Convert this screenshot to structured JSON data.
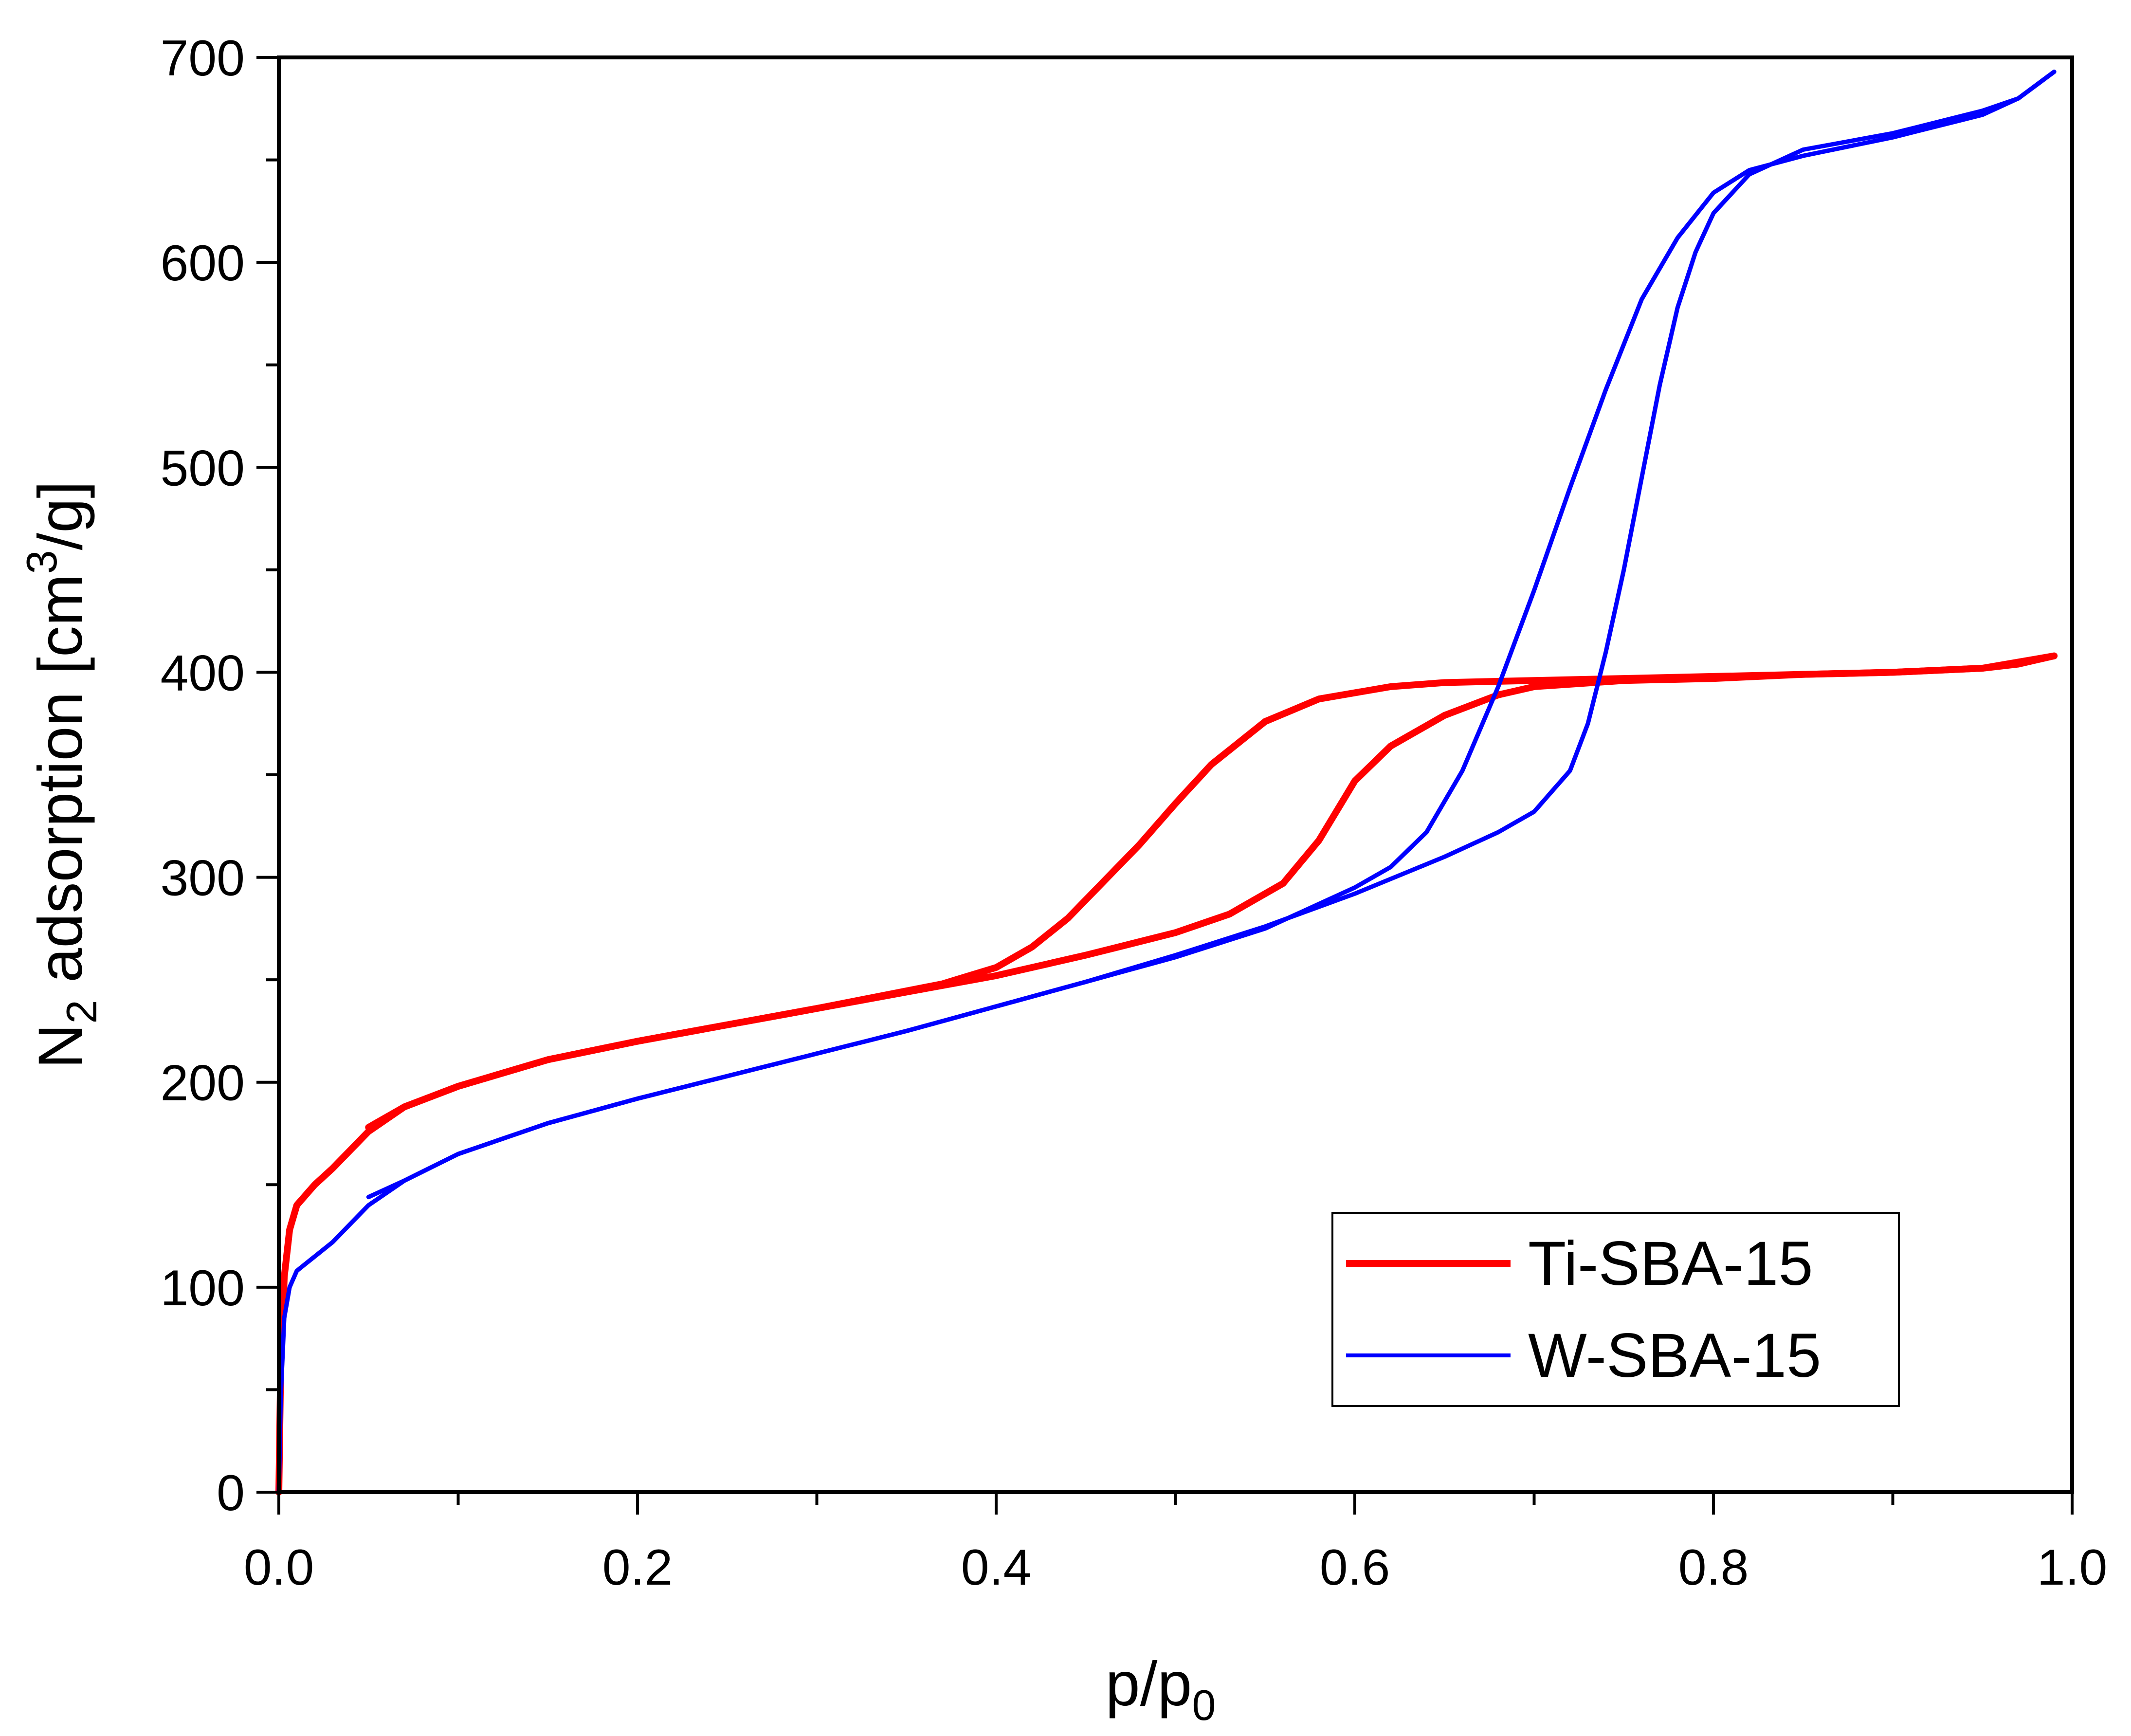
{
  "chart_data": {
    "type": "line",
    "title": "",
    "xlabel": {
      "main": "p/p",
      "sub": "0"
    },
    "ylabel": {
      "pre": "N",
      "sub": "2",
      "mid": " adsorption [cm",
      "sup": "3",
      "post": "/g]"
    },
    "xlim": [
      0,
      1
    ],
    "ylim": [
      0,
      700
    ],
    "xticks": [
      0,
      0.2,
      0.4,
      0.6,
      0.8,
      1.0
    ],
    "xtick_labels": [
      "0.0",
      "0.2",
      "0.4",
      "0.6",
      "0.8",
      "1.0"
    ],
    "xminor": [
      0.1,
      0.3,
      0.5,
      0.7,
      0.9
    ],
    "yticks": [
      0,
      100,
      200,
      300,
      400,
      500,
      600,
      700
    ],
    "ytick_labels": [
      "0",
      "100",
      "200",
      "300",
      "400",
      "500",
      "600",
      "700"
    ],
    "yminor": [
      50,
      150,
      250,
      350,
      450,
      550,
      650
    ],
    "grid": false,
    "legend_position": "bottom-right",
    "series": [
      {
        "name": "Ti-SBA-15",
        "color": "#ff0000",
        "adsorption": [
          [
            0.0,
            0
          ],
          [
            0.001,
            60
          ],
          [
            0.003,
            105
          ],
          [
            0.006,
            128
          ],
          [
            0.01,
            140
          ],
          [
            0.02,
            150
          ],
          [
            0.03,
            158
          ],
          [
            0.05,
            176
          ],
          [
            0.07,
            188
          ],
          [
            0.1,
            198
          ],
          [
            0.15,
            211
          ],
          [
            0.2,
            220
          ],
          [
            0.25,
            228
          ],
          [
            0.3,
            236
          ],
          [
            0.35,
            244
          ],
          [
            0.4,
            252
          ],
          [
            0.45,
            262
          ],
          [
            0.5,
            273
          ],
          [
            0.53,
            282
          ],
          [
            0.56,
            297
          ],
          [
            0.58,
            318
          ],
          [
            0.6,
            347
          ],
          [
            0.62,
            364
          ],
          [
            0.65,
            379
          ],
          [
            0.68,
            389
          ],
          [
            0.7,
            393
          ],
          [
            0.75,
            396
          ],
          [
            0.8,
            397
          ],
          [
            0.85,
            399
          ],
          [
            0.9,
            400
          ],
          [
            0.95,
            402
          ],
          [
            0.97,
            404
          ],
          [
            0.99,
            408
          ]
        ],
        "desorption": [
          [
            0.99,
            408
          ],
          [
            0.95,
            402
          ],
          [
            0.9,
            400
          ],
          [
            0.85,
            399
          ],
          [
            0.8,
            398
          ],
          [
            0.75,
            397
          ],
          [
            0.7,
            396
          ],
          [
            0.65,
            395
          ],
          [
            0.62,
            393
          ],
          [
            0.58,
            387
          ],
          [
            0.55,
            376
          ],
          [
            0.52,
            355
          ],
          [
            0.5,
            336
          ],
          [
            0.48,
            316
          ],
          [
            0.46,
            298
          ],
          [
            0.44,
            280
          ],
          [
            0.42,
            266
          ],
          [
            0.4,
            256
          ],
          [
            0.37,
            248
          ],
          [
            0.3,
            236
          ],
          [
            0.2,
            220
          ],
          [
            0.15,
            211
          ],
          [
            0.1,
            198
          ],
          [
            0.07,
            188
          ],
          [
            0.05,
            178
          ]
        ]
      },
      {
        "name": "W-SBA-15",
        "color": "#0000ff",
        "adsorption": [
          [
            0.0,
            0
          ],
          [
            0.001,
            45
          ],
          [
            0.003,
            85
          ],
          [
            0.006,
            100
          ],
          [
            0.01,
            108
          ],
          [
            0.02,
            115
          ],
          [
            0.03,
            122
          ],
          [
            0.05,
            140
          ],
          [
            0.07,
            152
          ],
          [
            0.1,
            165
          ],
          [
            0.15,
            180
          ],
          [
            0.2,
            192
          ],
          [
            0.25,
            203
          ],
          [
            0.3,
            214
          ],
          [
            0.35,
            225
          ],
          [
            0.4,
            237
          ],
          [
            0.45,
            249
          ],
          [
            0.5,
            262
          ],
          [
            0.55,
            276
          ],
          [
            0.6,
            292
          ],
          [
            0.65,
            310
          ],
          [
            0.68,
            322
          ],
          [
            0.7,
            332
          ],
          [
            0.72,
            352
          ],
          [
            0.73,
            375
          ],
          [
            0.74,
            410
          ],
          [
            0.75,
            450
          ],
          [
            0.76,
            495
          ],
          [
            0.77,
            540
          ],
          [
            0.78,
            578
          ],
          [
            0.79,
            605
          ],
          [
            0.8,
            624
          ],
          [
            0.82,
            643
          ],
          [
            0.85,
            655
          ],
          [
            0.9,
            663
          ],
          [
            0.95,
            674
          ],
          [
            0.97,
            680
          ],
          [
            0.99,
            693
          ]
        ],
        "desorption": [
          [
            0.99,
            693
          ],
          [
            0.97,
            680
          ],
          [
            0.95,
            672
          ],
          [
            0.9,
            661
          ],
          [
            0.85,
            652
          ],
          [
            0.82,
            645
          ],
          [
            0.8,
            634
          ],
          [
            0.78,
            612
          ],
          [
            0.76,
            582
          ],
          [
            0.74,
            538
          ],
          [
            0.72,
            490
          ],
          [
            0.7,
            440
          ],
          [
            0.68,
            393
          ],
          [
            0.66,
            352
          ],
          [
            0.64,
            322
          ],
          [
            0.62,
            305
          ],
          [
            0.6,
            295
          ],
          [
            0.55,
            275
          ],
          [
            0.5,
            261
          ],
          [
            0.45,
            249
          ],
          [
            0.4,
            237
          ],
          [
            0.35,
            225
          ],
          [
            0.3,
            214
          ],
          [
            0.25,
            203
          ],
          [
            0.2,
            192
          ],
          [
            0.15,
            180
          ],
          [
            0.1,
            165
          ],
          [
            0.07,
            152
          ],
          [
            0.05,
            144
          ]
        ]
      }
    ]
  }
}
